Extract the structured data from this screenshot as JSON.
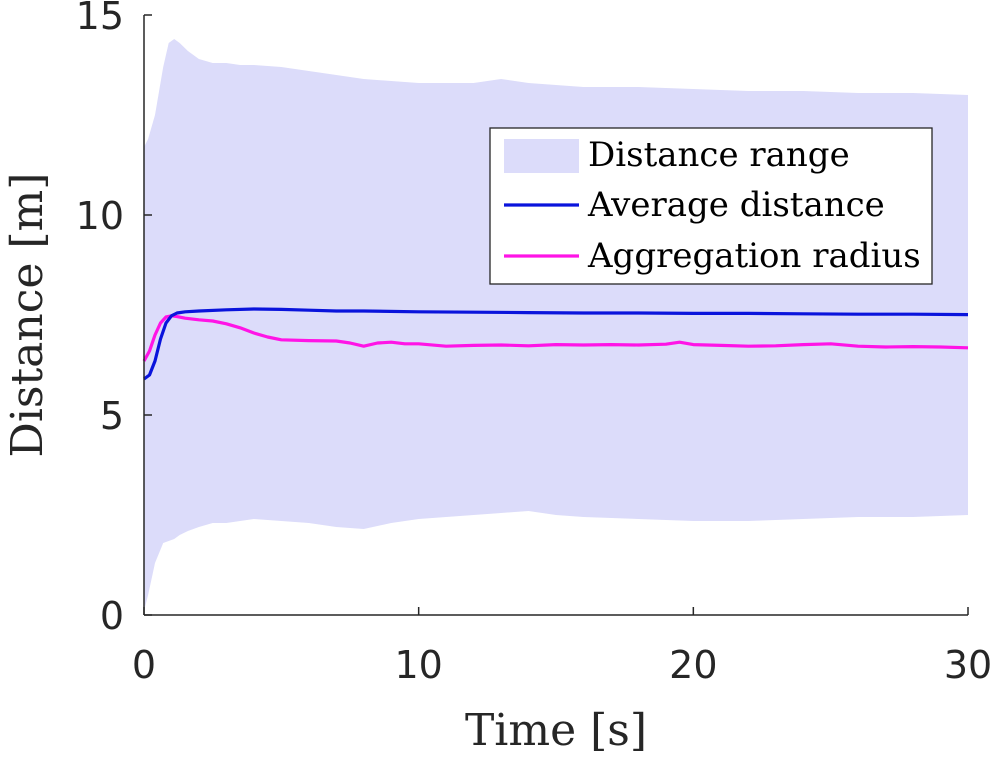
{
  "chart_data": {
    "type": "line",
    "xlabel": "Time [s]",
    "ylabel": "Distance [m]",
    "xlim": [
      0,
      30
    ],
    "ylim": [
      0,
      15
    ],
    "xticks": [
      0,
      10,
      20,
      30
    ],
    "yticks": [
      0,
      5,
      10,
      15
    ],
    "grid": false,
    "legend_position": "top-right",
    "colors": {
      "range": "#dcdcfa",
      "average": "#0a14dc",
      "radius": "#ff14e6",
      "axis": "#262626"
    },
    "range": {
      "name": "Distance range",
      "x": [
        0,
        0.15,
        0.4,
        0.7,
        0.9,
        1.1,
        1.3,
        1.6,
        2,
        2.5,
        3,
        3.5,
        4,
        5,
        6,
        7,
        8,
        9,
        10,
        12,
        13,
        14,
        15,
        16,
        18,
        20,
        22,
        24,
        26,
        28,
        30
      ],
      "upper": [
        11.7,
        11.9,
        12.5,
        13.7,
        14.3,
        14.4,
        14.3,
        14.1,
        13.9,
        13.8,
        13.8,
        13.75,
        13.75,
        13.7,
        13.6,
        13.5,
        13.4,
        13.35,
        13.3,
        13.3,
        13.4,
        13.3,
        13.25,
        13.2,
        13.2,
        13.15,
        13.1,
        13.1,
        13.05,
        13.05,
        13.0
      ],
      "lower": [
        0.1,
        0.5,
        1.3,
        1.8,
        1.85,
        1.9,
        2.0,
        2.1,
        2.2,
        2.3,
        2.3,
        2.35,
        2.4,
        2.35,
        2.3,
        2.2,
        2.15,
        2.3,
        2.4,
        2.5,
        2.55,
        2.6,
        2.5,
        2.45,
        2.4,
        2.35,
        2.35,
        2.4,
        2.45,
        2.45,
        2.5
      ]
    },
    "series": [
      {
        "name": "Average distance",
        "x": [
          0,
          0.2,
          0.4,
          0.6,
          0.8,
          1.0,
          1.2,
          1.5,
          2,
          3,
          4,
          5,
          6,
          7,
          8,
          10,
          12,
          14,
          16,
          18,
          20,
          22,
          24,
          26,
          28,
          30
        ],
        "values": [
          5.9,
          6.0,
          6.35,
          6.9,
          7.3,
          7.48,
          7.55,
          7.58,
          7.6,
          7.63,
          7.65,
          7.64,
          7.62,
          7.6,
          7.6,
          7.58,
          7.57,
          7.56,
          7.55,
          7.55,
          7.54,
          7.54,
          7.53,
          7.52,
          7.52,
          7.51
        ]
      },
      {
        "name": "Aggregation radius",
        "x": [
          0,
          0.2,
          0.4,
          0.6,
          0.8,
          1.0,
          1.2,
          1.5,
          2,
          2.5,
          3,
          3.5,
          4,
          4.5,
          5,
          6,
          7,
          7.5,
          8,
          8.5,
          9,
          9.5,
          10,
          11,
          12,
          13,
          14,
          15,
          16,
          17,
          18,
          19,
          19.5,
          20,
          21,
          22,
          23,
          24,
          25,
          26,
          27,
          28,
          29,
          30
        ],
        "values": [
          6.35,
          6.6,
          7.0,
          7.3,
          7.45,
          7.48,
          7.46,
          7.42,
          7.38,
          7.35,
          7.28,
          7.18,
          7.05,
          6.95,
          6.88,
          6.86,
          6.85,
          6.8,
          6.72,
          6.8,
          6.82,
          6.78,
          6.78,
          6.72,
          6.74,
          6.75,
          6.73,
          6.76,
          6.75,
          6.76,
          6.75,
          6.77,
          6.82,
          6.76,
          6.74,
          6.72,
          6.73,
          6.76,
          6.78,
          6.72,
          6.7,
          6.71,
          6.7,
          6.68
        ]
      }
    ],
    "legend": [
      "Distance range",
      "Average distance",
      "Aggregation radius"
    ]
  }
}
